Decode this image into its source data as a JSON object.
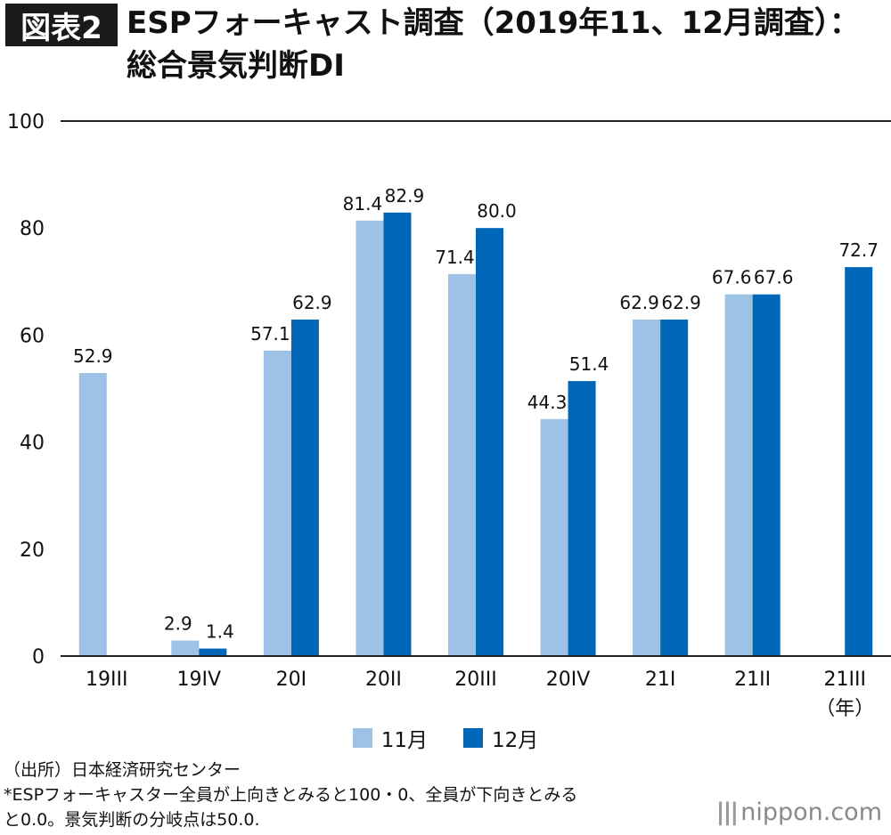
{
  "header": {
    "badge": "図表2",
    "title_line1": "ESPフォーキャスト調査（2019年11、12月調査）：",
    "title_line2": "総合景気判断DI"
  },
  "colors": {
    "nov": "#9cc3e5",
    "dec": "#0066b8",
    "axis": "#222222"
  },
  "chart_data": {
    "type": "bar",
    "categories": [
      "19III",
      "19IV",
      "20I",
      "20II",
      "20III",
      "20IV",
      "21I",
      "21II",
      "21III"
    ],
    "x_unit": "（年）",
    "series": [
      {
        "name": "11月",
        "values": [
          52.9,
          2.9,
          57.1,
          81.4,
          71.4,
          44.3,
          62.9,
          67.6,
          null
        ],
        "labels": [
          "52.9",
          "2.9",
          "57.1",
          "81.4",
          "71.4",
          "44.3",
          "62.9",
          "67.6",
          ""
        ]
      },
      {
        "name": "12月",
        "values": [
          null,
          1.4,
          62.9,
          82.9,
          80.0,
          51.4,
          62.9,
          67.6,
          72.7
        ],
        "labels": [
          "",
          "1.4",
          "62.9",
          "82.9",
          "80.0",
          "51.4",
          "62.9",
          "67.6",
          "72.7"
        ]
      }
    ],
    "ylim": [
      0,
      100
    ],
    "yticks": [
      0,
      20,
      40,
      60,
      80,
      100
    ],
    "ytick_labels": [
      "0",
      "20",
      "40",
      "60",
      "80",
      "100"
    ],
    "grid": "top line only",
    "legend": "bottom-center"
  },
  "legend": {
    "nov": "11月",
    "dec": "12月"
  },
  "notes": {
    "source": "（出所）日本経済研究センター",
    "note1": "*ESPフォーキャスター全員が上向きとみると100・0、全員が下向きとみる",
    "note2": "と0.0。景気判断の分岐点は50.0."
  },
  "brand": {
    "bars": "|||",
    "name": "nippon.com"
  }
}
